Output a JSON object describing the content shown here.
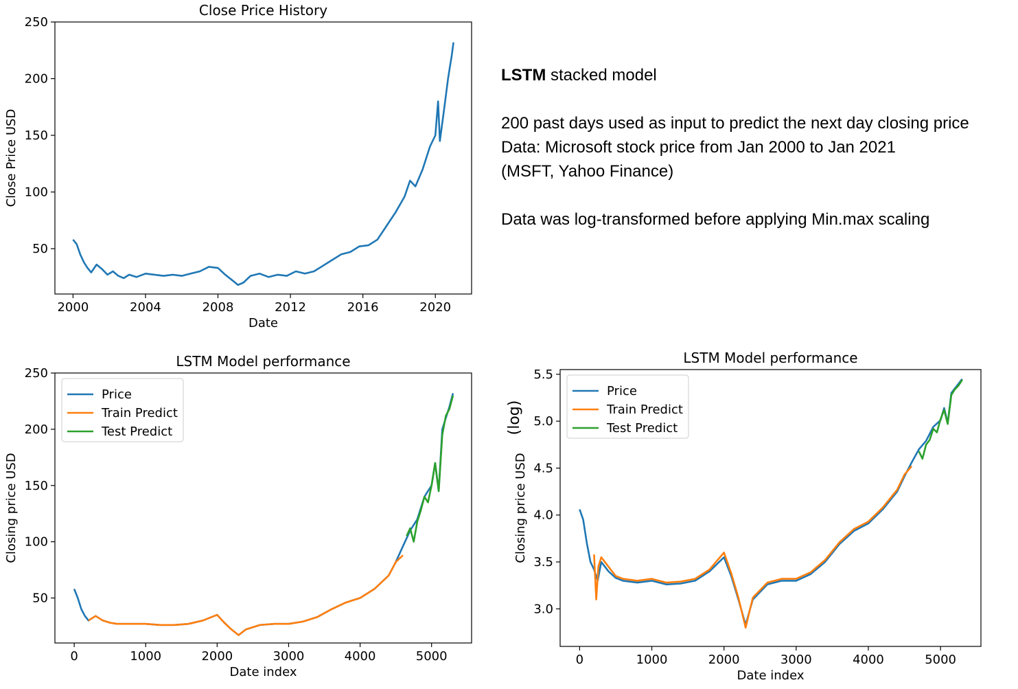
{
  "notes": {
    "model_bold": "LSTM",
    "model_rest": " stacked model",
    "line1": "200 past days used as input to predict the next day closing price",
    "line2": "Data: Microsoft stock price from Jan 2000 to Jan 2021",
    "line3": "(MSFT, Yahoo Finance)",
    "line4": "Data was log-transformed before applying Min.max scaling"
  },
  "colors": {
    "price": "#1f77b4",
    "train": "#ff7f0e",
    "test": "#2ca02c"
  },
  "chart_data": [
    {
      "id": "history",
      "type": "line",
      "title": "Close Price History",
      "xlabel": "Date",
      "ylabel": "Close Price USD",
      "xlim": [
        1999.0,
        2022.0
      ],
      "ylim": [
        10,
        250
      ],
      "xticks": [
        2000,
        2004,
        2008,
        2012,
        2016,
        2020
      ],
      "xtick_labels": [
        "2000",
        "2004",
        "2008",
        "2012",
        "2016",
        "2020"
      ],
      "yticks": [
        50,
        100,
        150,
        200,
        250
      ],
      "ytick_labels": [
        "50",
        "100",
        "150",
        "200",
        "250"
      ],
      "legend": "none",
      "series": [
        {
          "color": "price",
          "x": [
            2000.0,
            2000.2,
            2000.4,
            2000.6,
            2000.8,
            2001.0,
            2001.3,
            2001.6,
            2001.9,
            2002.2,
            2002.5,
            2002.8,
            2003.1,
            2003.5,
            2004.0,
            2004.5,
            2005.0,
            2005.5,
            2006.0,
            2006.5,
            2007.0,
            2007.5,
            2008.0,
            2008.4,
            2008.8,
            2009.1,
            2009.4,
            2009.8,
            2010.3,
            2010.8,
            2011.3,
            2011.8,
            2012.3,
            2012.8,
            2013.3,
            2013.8,
            2014.3,
            2014.8,
            2015.3,
            2015.8,
            2016.3,
            2016.8,
            2017.3,
            2017.8,
            2018.3,
            2018.6,
            2018.9,
            2019.3,
            2019.7,
            2020.0,
            2020.15,
            2020.25,
            2020.5,
            2020.7,
            2020.8,
            2020.9,
            2021.0
          ],
          "y": [
            58,
            54,
            45,
            38,
            33,
            29,
            36,
            32,
            27,
            30,
            26,
            24,
            27,
            25,
            28,
            27,
            26,
            27,
            26,
            28,
            30,
            34,
            33,
            27,
            22,
            18,
            20,
            26,
            28,
            25,
            27,
            26,
            30,
            28,
            30,
            35,
            40,
            45,
            47,
            52,
            53,
            58,
            70,
            82,
            96,
            110,
            105,
            120,
            140,
            150,
            180,
            145,
            175,
            200,
            210,
            220,
            232
          ]
        }
      ]
    },
    {
      "id": "perf-linear",
      "type": "line",
      "title": "LSTM Model performance",
      "xlabel": "Date index",
      "ylabel": "Closing price USD",
      "xlim": [
        -270,
        5560
      ],
      "ylim": [
        10,
        250
      ],
      "xticks": [
        0,
        1000,
        2000,
        3000,
        4000,
        5000
      ],
      "xtick_labels": [
        "0",
        "1000",
        "2000",
        "3000",
        "4000",
        "5000"
      ],
      "yticks": [
        50,
        100,
        150,
        200,
        250
      ],
      "ytick_labels": [
        "50",
        "100",
        "150",
        "200",
        "250"
      ],
      "legend": "top-left",
      "series": [
        {
          "name": "Price",
          "color": "price",
          "x": [
            0,
            50,
            100,
            150,
            200,
            300,
            400,
            500,
            600,
            800,
            1000,
            1200,
            1400,
            1600,
            1800,
            2000,
            2100,
            2200,
            2300,
            2400,
            2600,
            2800,
            3000,
            3200,
            3400,
            3600,
            3800,
            4000,
            4200,
            4400,
            4500,
            4600,
            4700,
            4800,
            4900,
            5000,
            5050,
            5100,
            5150,
            5200,
            5250,
            5300
          ],
          "y": [
            58,
            50,
            40,
            34,
            30,
            34,
            30,
            28,
            27,
            27,
            27,
            26,
            26,
            27,
            30,
            35,
            28,
            22,
            17,
            22,
            26,
            27,
            27,
            29,
            33,
            40,
            46,
            50,
            58,
            70,
            82,
            96,
            110,
            120,
            140,
            150,
            170,
            145,
            200,
            210,
            220,
            232
          ]
        },
        {
          "name": "Train Predict",
          "color": "train",
          "x": [
            200,
            300,
            400,
            500,
            600,
            800,
            1000,
            1200,
            1400,
            1600,
            1800,
            2000,
            2100,
            2200,
            2300,
            2400,
            2600,
            2800,
            3000,
            3200,
            3400,
            3600,
            3800,
            4000,
            4200,
            4400,
            4500,
            4600
          ],
          "y": [
            30,
            34,
            30,
            28,
            27,
            27,
            27,
            26,
            26,
            27,
            30,
            35,
            28,
            22,
            17,
            22,
            26,
            27,
            27,
            29,
            33,
            40,
            46,
            50,
            58,
            70,
            82,
            88
          ]
        },
        {
          "name": "Test Predict",
          "color": "test",
          "x": [
            4650,
            4700,
            4750,
            4800,
            4850,
            4900,
            4950,
            5000,
            5050,
            5100,
            5150,
            5200,
            5250,
            5300
          ],
          "y": [
            105,
            112,
            100,
            118,
            128,
            140,
            135,
            150,
            170,
            145,
            195,
            212,
            218,
            230
          ]
        }
      ]
    },
    {
      "id": "perf-log",
      "type": "line",
      "title": "LSTM Model performance",
      "xlabel": "Date index",
      "ylabel": "Closing price USD",
      "ylabel_extra": "(log)",
      "xlim": [
        -270,
        5560
      ],
      "ylim": [
        2.6,
        5.55
      ],
      "xticks": [
        0,
        1000,
        2000,
        3000,
        4000,
        5000
      ],
      "xtick_labels": [
        "0",
        "1000",
        "2000",
        "3000",
        "4000",
        "5000"
      ],
      "yticks": [
        3.0,
        3.5,
        4.0,
        4.5,
        5.0,
        5.5
      ],
      "ytick_labels": [
        "3.0",
        "3.5",
        "4.0",
        "4.5",
        "5.0",
        "5.5"
      ],
      "legend": "top-left",
      "series": [
        {
          "name": "Price",
          "color": "price",
          "x": [
            0,
            50,
            100,
            150,
            200,
            250,
            300,
            400,
            500,
            600,
            800,
            1000,
            1200,
            1400,
            1600,
            1800,
            2000,
            2100,
            2200,
            2300,
            2400,
            2600,
            2800,
            3000,
            3200,
            3400,
            3600,
            3800,
            4000,
            4200,
            4400,
            4500,
            4600,
            4700,
            4800,
            4900,
            5000,
            5050,
            5100,
            5150,
            5200,
            5250,
            5300
          ],
          "y": [
            4.06,
            3.95,
            3.7,
            3.5,
            3.42,
            3.3,
            3.5,
            3.4,
            3.33,
            3.3,
            3.28,
            3.3,
            3.26,
            3.27,
            3.3,
            3.4,
            3.55,
            3.35,
            3.1,
            2.83,
            3.1,
            3.26,
            3.3,
            3.3,
            3.37,
            3.5,
            3.69,
            3.83,
            3.91,
            4.06,
            4.25,
            4.41,
            4.56,
            4.7,
            4.79,
            4.94,
            5.01,
            5.14,
            4.98,
            5.3,
            5.35,
            5.4,
            5.45
          ]
        },
        {
          "name": "Train Predict",
          "color": "train",
          "x": [
            200,
            230,
            260,
            300,
            400,
            500,
            600,
            800,
            1000,
            1200,
            1400,
            1600,
            1800,
            2000,
            2100,
            2200,
            2300,
            2400,
            2600,
            2800,
            3000,
            3200,
            3400,
            3600,
            3800,
            4000,
            4200,
            4400,
            4500,
            4600
          ],
          "y": [
            3.58,
            3.1,
            3.45,
            3.55,
            3.45,
            3.35,
            3.32,
            3.3,
            3.32,
            3.28,
            3.29,
            3.32,
            3.42,
            3.6,
            3.38,
            3.12,
            2.8,
            3.12,
            3.28,
            3.32,
            3.32,
            3.39,
            3.52,
            3.71,
            3.85,
            3.93,
            4.08,
            4.27,
            4.43,
            4.52
          ]
        },
        {
          "name": "Test Predict",
          "color": "test",
          "x": [
            4700,
            4750,
            4800,
            4850,
            4900,
            4950,
            5000,
            5050,
            5100,
            5150,
            5200,
            5250,
            5300
          ],
          "y": [
            4.68,
            4.6,
            4.75,
            4.8,
            4.92,
            4.88,
            5.02,
            5.12,
            4.97,
            5.28,
            5.34,
            5.38,
            5.44
          ]
        }
      ]
    }
  ]
}
